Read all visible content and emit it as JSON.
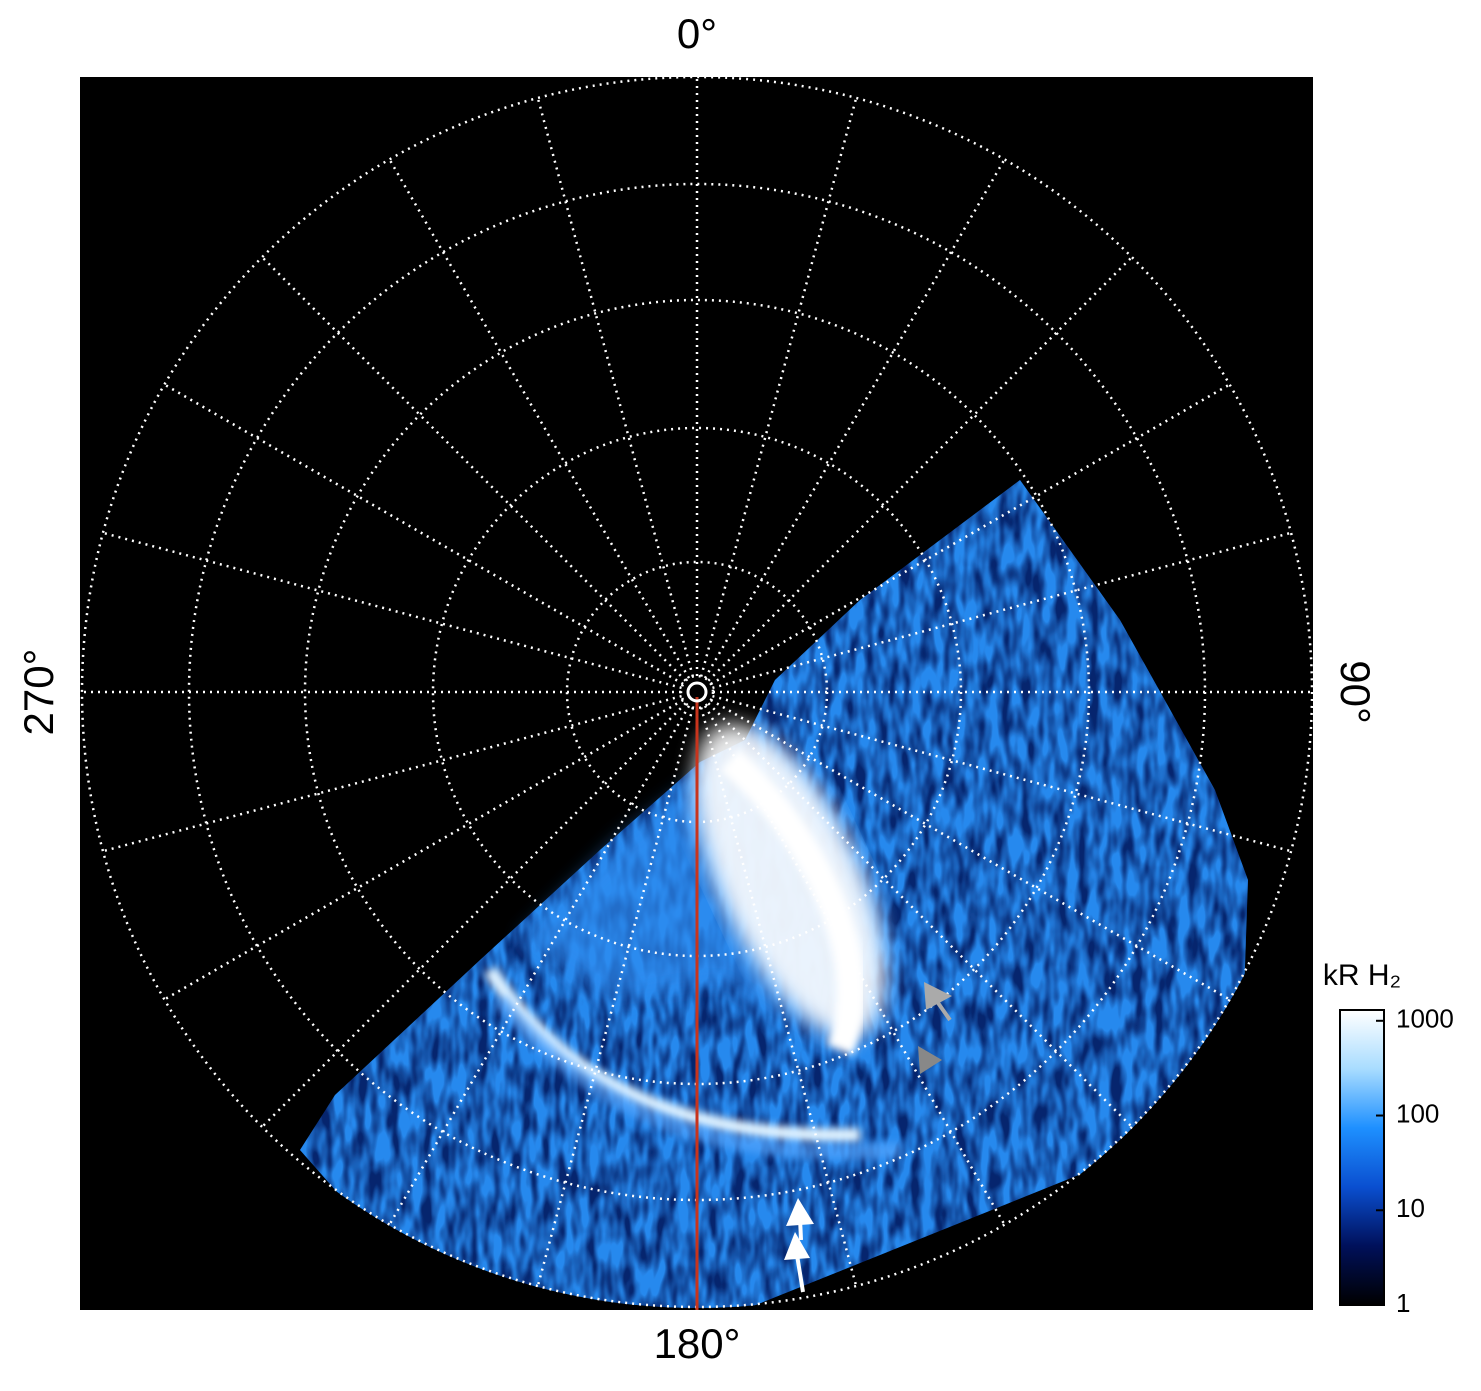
{
  "chart_data": {
    "type": "polar-image",
    "theta_ticks": [
      {
        "value": 0,
        "label": "0°"
      },
      {
        "value": 90,
        "label": "90°"
      },
      {
        "value": 180,
        "label": "180°"
      },
      {
        "value": 270,
        "label": "270°"
      }
    ],
    "colorbar": {
      "title": "kR H₂",
      "scale": "log",
      "lim": [
        1,
        1300
      ],
      "ticks": [
        1,
        10,
        100,
        1000
      ],
      "colormap": [
        "#000000",
        "#00105a",
        "#0a4fd0",
        "#1e90ff",
        "#a8dcff",
        "#ffffff"
      ]
    }
  }
}
